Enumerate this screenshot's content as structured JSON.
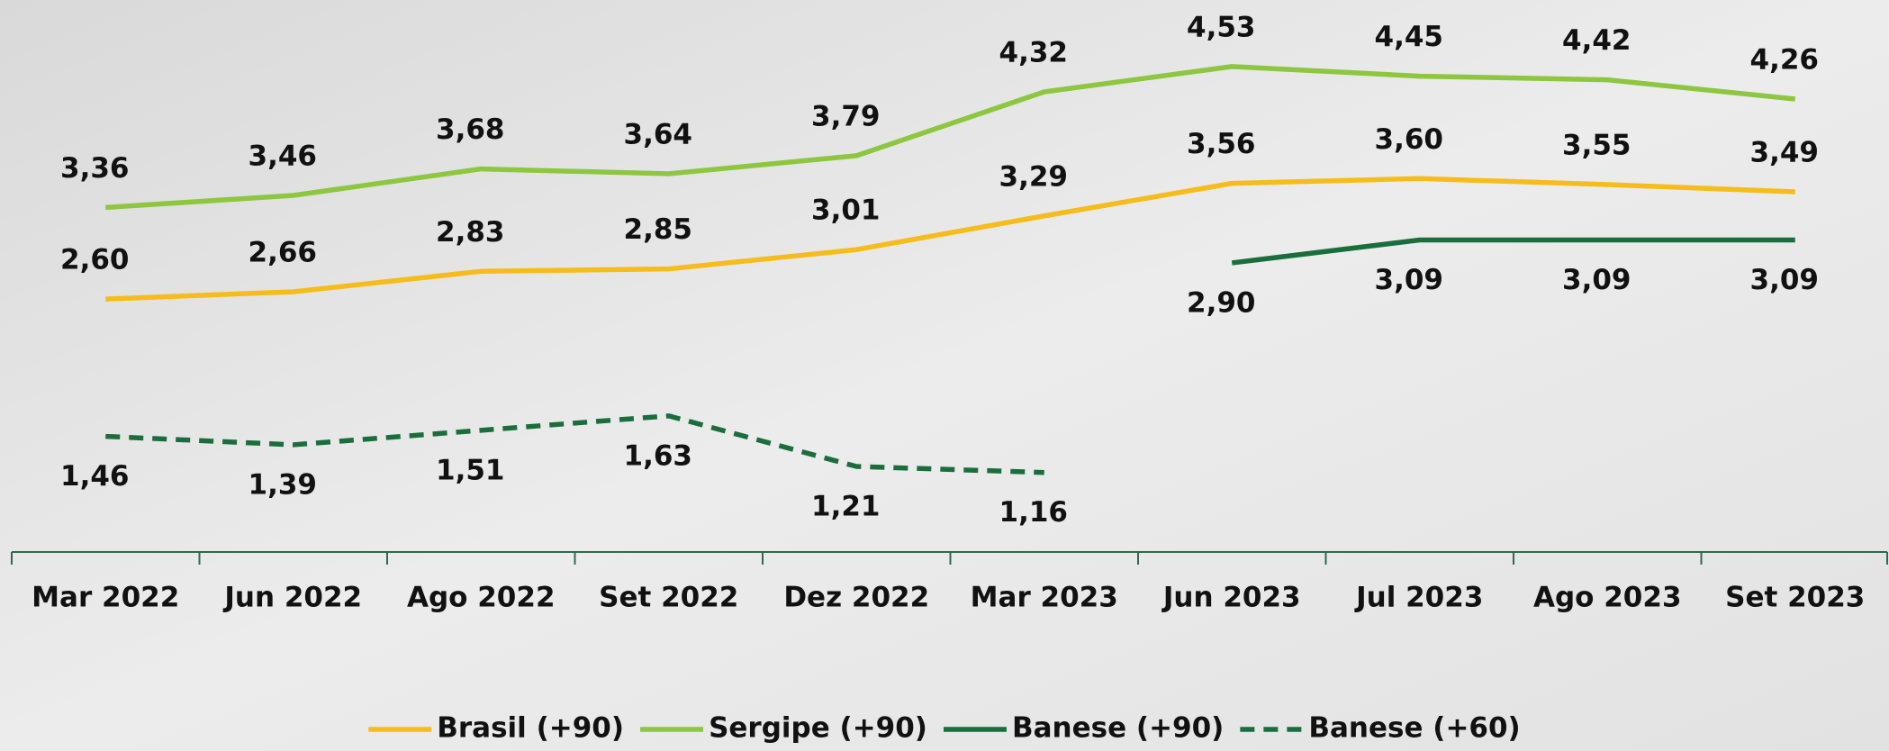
{
  "chart_data": {
    "type": "line",
    "categories": [
      "Mar 2022",
      "Jun 2022",
      "Ago 2022",
      "Set 2022",
      "Dez 2022",
      "Mar 2023",
      "Jun 2023",
      "Jul 2023",
      "Ago 2023",
      "Set 2023"
    ],
    "series": [
      {
        "name": "Brasil (+90)",
        "color": "#f5bc1c",
        "dashed": false,
        "label_position": "above",
        "values": [
          2.6,
          2.66,
          2.83,
          2.85,
          3.01,
          3.29,
          3.56,
          3.6,
          3.55,
          3.49
        ],
        "value_labels": [
          "2,60",
          "2,66",
          "2,83",
          "2,85",
          "3,01",
          "3,29",
          "3,56",
          "3,60",
          "3,55",
          "3,49"
        ]
      },
      {
        "name": "Sergipe (+90)",
        "color": "#8dc63f",
        "dashed": false,
        "label_position": "above",
        "values": [
          3.36,
          3.46,
          3.68,
          3.64,
          3.79,
          4.32,
          4.53,
          4.45,
          4.42,
          4.26
        ],
        "value_labels": [
          "3,36",
          "3,46",
          "3,68",
          "3,64",
          "3,79",
          "4,32",
          "4,53",
          "4,45",
          "4,42",
          "4,26"
        ]
      },
      {
        "name": "Banese (+90)",
        "color": "#1a6e3c",
        "dashed": false,
        "label_position": "below",
        "values": [
          null,
          null,
          null,
          null,
          null,
          null,
          2.9,
          3.09,
          3.09,
          3.09
        ],
        "value_labels": [
          null,
          null,
          null,
          null,
          null,
          null,
          "2,90",
          "3,09",
          "3,09",
          "3,09"
        ]
      },
      {
        "name": "Banese (+60)",
        "color": "#1a6e3c",
        "dashed": true,
        "label_position": "below",
        "values": [
          1.46,
          1.39,
          1.51,
          1.63,
          1.21,
          1.16,
          null,
          null,
          null,
          null
        ],
        "value_labels": [
          "1,46",
          "1,39",
          "1,51",
          "1,63",
          "1,21",
          "1,16",
          null,
          null,
          null,
          null
        ]
      }
    ],
    "ylim": [
      0.5,
      5
    ],
    "grid": false,
    "legend": "bottom"
  }
}
